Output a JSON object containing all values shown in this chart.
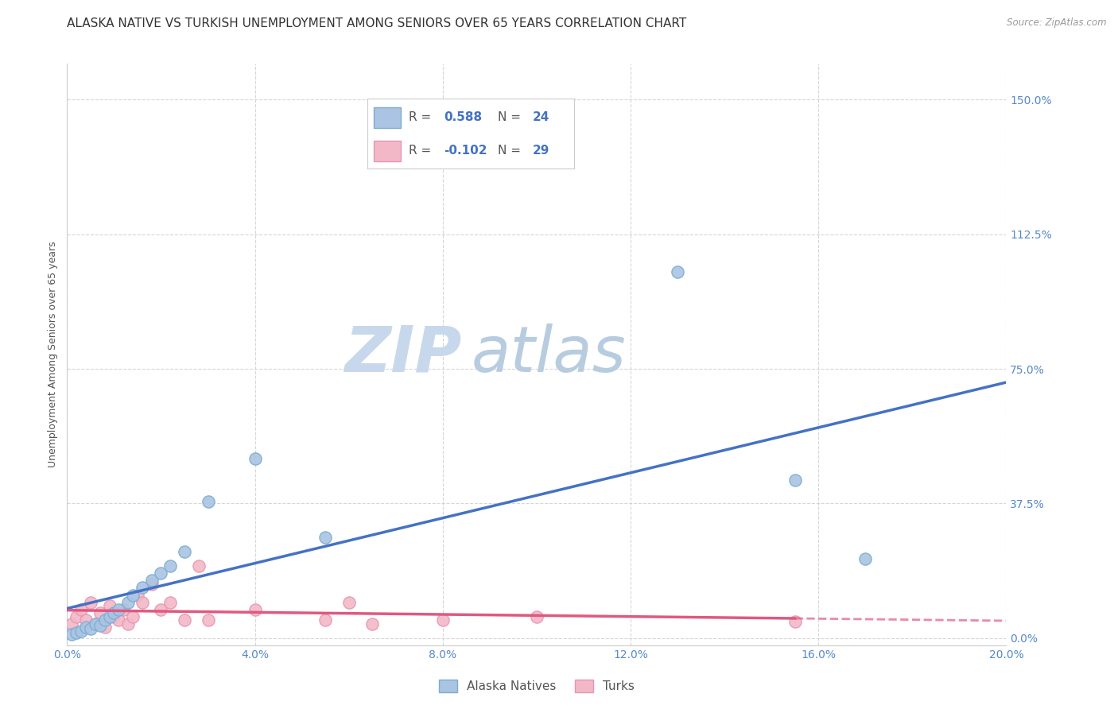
{
  "title": "ALASKA NATIVE VS TURKISH UNEMPLOYMENT AMONG SENIORS OVER 65 YEARS CORRELATION CHART",
  "source": "Source: ZipAtlas.com",
  "ylabel_label": "Unemployment Among Seniors over 65 years",
  "xlim": [
    0.0,
    0.2
  ],
  "ylim": [
    -0.02,
    1.6
  ],
  "x_ticks": [
    0.0,
    0.04,
    0.08,
    0.12,
    0.16,
    0.2
  ],
  "x_tick_labels": [
    "0.0%",
    "4.0%",
    "8.0%",
    "12.0%",
    "16.0%",
    "20.0%"
  ],
  "y_ticks": [
    0.0,
    0.375,
    0.75,
    1.125,
    1.5
  ],
  "y_tick_labels": [
    "0.0%",
    "37.5%",
    "75.0%",
    "112.5%",
    "150.0%"
  ],
  "alaska_x": [
    0.001,
    0.002,
    0.003,
    0.004,
    0.005,
    0.006,
    0.007,
    0.008,
    0.009,
    0.01,
    0.011,
    0.013,
    0.014,
    0.016,
    0.018,
    0.02,
    0.022,
    0.025,
    0.03,
    0.04,
    0.055,
    0.13,
    0.155,
    0.17
  ],
  "alaska_y": [
    0.01,
    0.015,
    0.02,
    0.03,
    0.025,
    0.04,
    0.035,
    0.05,
    0.06,
    0.07,
    0.08,
    0.1,
    0.12,
    0.14,
    0.16,
    0.18,
    0.2,
    0.24,
    0.38,
    0.5,
    0.28,
    1.02,
    0.44,
    0.22
  ],
  "turkish_x": [
    0.001,
    0.002,
    0.003,
    0.004,
    0.005,
    0.006,
    0.007,
    0.008,
    0.009,
    0.01,
    0.011,
    0.012,
    0.013,
    0.014,
    0.015,
    0.016,
    0.018,
    0.02,
    0.022,
    0.025,
    0.028,
    0.03,
    0.04,
    0.055,
    0.06,
    0.065,
    0.08,
    0.1,
    0.155
  ],
  "turkish_y": [
    0.04,
    0.06,
    0.08,
    0.05,
    0.1,
    0.04,
    0.07,
    0.03,
    0.09,
    0.06,
    0.05,
    0.08,
    0.04,
    0.06,
    0.12,
    0.1,
    0.15,
    0.08,
    0.1,
    0.05,
    0.2,
    0.05,
    0.08,
    0.05,
    0.1,
    0.04,
    0.05,
    0.06,
    0.045
  ],
  "alaska_color": "#aac4e2",
  "alaska_edge_color": "#7aadd4",
  "turkish_color": "#f2b8c8",
  "turkish_edge_color": "#e896b0",
  "alaska_line_color": "#4472c4",
  "turkish_line_color": "#e05880",
  "alaska_R": 0.588,
  "alaska_N": 24,
  "turkish_R": -0.102,
  "turkish_N": 29,
  "legend_r_color": "#4472c4",
  "watermark_zip": "ZIP",
  "watermark_atlas": "atlas",
  "watermark_color": "#d0dff0",
  "background_color": "#ffffff",
  "grid_color": "#cccccc",
  "title_fontsize": 11,
  "axis_label_fontsize": 9,
  "tick_fontsize": 10,
  "tick_color": "#5588cc",
  "scatter_size": 120
}
